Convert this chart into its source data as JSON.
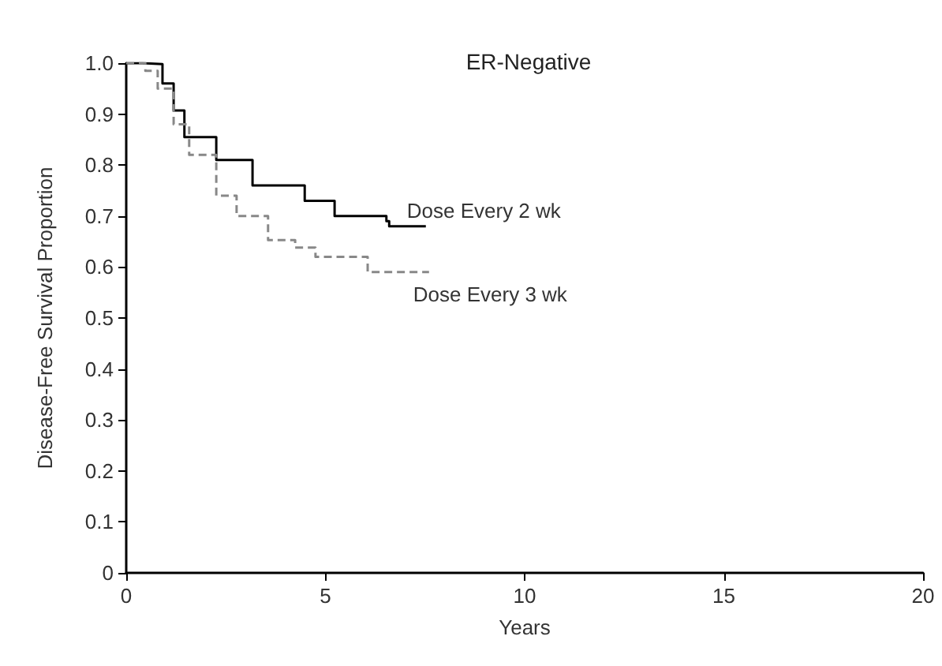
{
  "chart_data": {
    "type": "step",
    "title": "ER-Negative",
    "xlabel": "Years",
    "ylabel": "Disease-Free Survival Proportion",
    "series": [
      {
        "name": "Dose Every 2 wk",
        "color": "#000000",
        "line_style": "solid",
        "x": [
          0,
          0.4,
          0.91,
          1.19,
          1.46,
          2.26,
          3.17,
          4.48,
          5.23,
          6.06,
          6.53,
          6.6,
          7.52
        ],
        "values": [
          1.0,
          0.998,
          0.96,
          0.907,
          0.855,
          0.81,
          0.76,
          0.73,
          0.7,
          0.7,
          0.69,
          0.68,
          0.68
        ]
      },
      {
        "name": "Dose Every 3 wk",
        "color": "#888888",
        "line_style": "dashed",
        "x": [
          0,
          0.48,
          0.79,
          1.19,
          1.58,
          2.26,
          2.77,
          3.56,
          4.24,
          4.75,
          5.4,
          6.06,
          7.6
        ],
        "values": [
          1.0,
          0.985,
          0.95,
          0.88,
          0.82,
          0.74,
          0.7,
          0.653,
          0.638,
          0.62,
          0.62,
          0.59,
          0.59
        ]
      }
    ],
    "xlim": [
      0,
      20
    ],
    "xticks": [
      0,
      5,
      10,
      15,
      20
    ],
    "ylim": [
      0,
      1.0
    ],
    "yticks": [
      0,
      0.1,
      0.2,
      0.3,
      0.4,
      0.5,
      0.6,
      0.7,
      0.8,
      0.9,
      {
        "value": 1.0,
        "label": "1.0"
      }
    ],
    "grid": false,
    "legend": false,
    "marker": "none"
  }
}
